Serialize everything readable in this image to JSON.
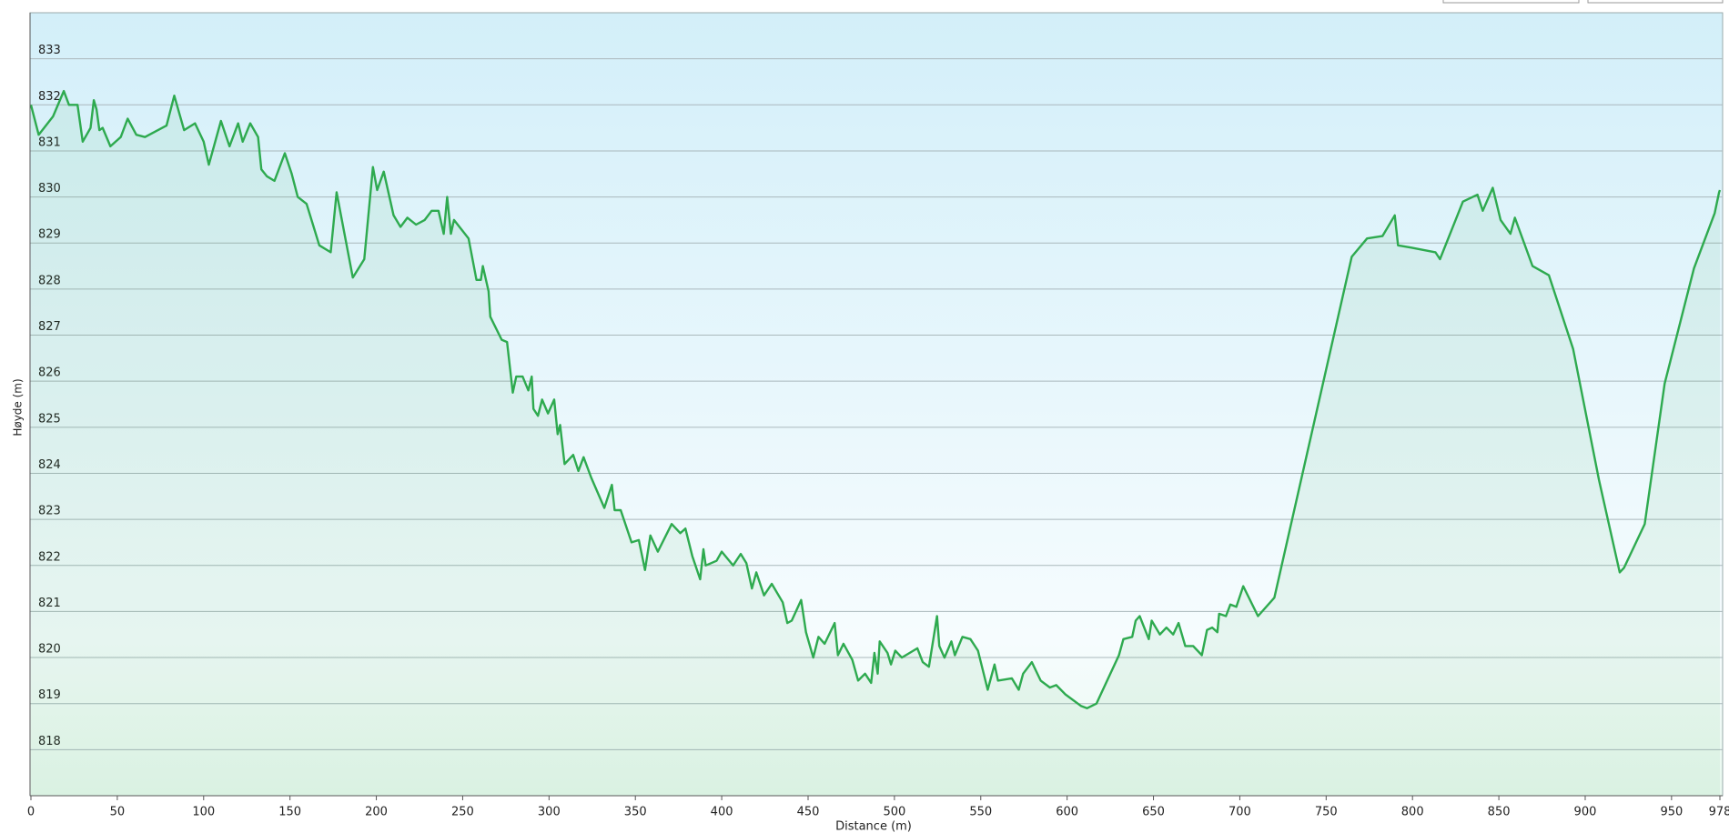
{
  "chart_data": {
    "type": "area",
    "ylabel": "Høyde (m)",
    "xlabel": "Distance (m)",
    "color": "#2eaa4f",
    "grid": true,
    "xlim": [
      0,
      978
    ],
    "ylim": [
      817,
      834
    ],
    "xticks": [
      0,
      50,
      100,
      150,
      200,
      250,
      300,
      350,
      400,
      450,
      500,
      550,
      600,
      650,
      700,
      750,
      800,
      850,
      900,
      950,
      978
    ],
    "yticks": [
      818,
      819,
      820,
      821,
      822,
      823,
      824,
      825,
      826,
      827,
      828,
      829,
      830,
      831,
      832,
      833
    ],
    "x": [
      0,
      4.5,
      12.8,
      19,
      22,
      27,
      30,
      34.5,
      36.4,
      38,
      39.6,
      41.5,
      46,
      52,
      56,
      61,
      66,
      78.5,
      83,
      88.7,
      95,
      100,
      103,
      110,
      115,
      120,
      122.6,
      127,
      131.5,
      133.4,
      136.6,
      141,
      147,
      151,
      154.5,
      159.6,
      167,
      173.6,
      177,
      186.4,
      193,
      198,
      200.5,
      204.3,
      210,
      214,
      218,
      223,
      228,
      232,
      236,
      239,
      241,
      243.2,
      245,
      253.4,
      258,
      260.5,
      261.7,
      265,
      266,
      272.6,
      275.7,
      279,
      281,
      284.7,
      288,
      290,
      291,
      293.6,
      296,
      299.4,
      303,
      305,
      306.4,
      309,
      314,
      317,
      320,
      324.5,
      332,
      336.4,
      338,
      341.5,
      347.8,
      352,
      355.6,
      358.7,
      363,
      371,
      376,
      379,
      383,
      387.5,
      389.4,
      390.7,
      397,
      400,
      406.6,
      411,
      414.3,
      417.5,
      420,
      424.5,
      429,
      435.3,
      438,
      440.5,
      446,
      448.8,
      453,
      456,
      459.6,
      465.4,
      467.3,
      470.5,
      475.6,
      479,
      483,
      486.5,
      488.4,
      490.3,
      491.5,
      496,
      498,
      500.5,
      504.3,
      513.3,
      516.4,
      520,
      524.7,
      526,
      529,
      533,
      535,
      539.4,
      544,
      548.4,
      554,
      558,
      560,
      568,
      572,
      574.5,
      579.6,
      584.7,
      590,
      593.7,
      599,
      608,
      611.5,
      617,
      630,
      632.6,
      637.7,
      639.7,
      642,
      647.3,
      649,
      653.7,
      657.5,
      661.4,
      664.5,
      668.4,
      673,
      678,
      681,
      684,
      687,
      688,
      692,
      694.5,
      698,
      702,
      710.5,
      720,
      764.8,
      773.7,
      782.6,
      789.7,
      791.6,
      799.3,
      813.3,
      815.9,
      829.2,
      837.6,
      840.7,
      846.5,
      851,
      856.7,
      859.3,
      869.5,
      879,
      893,
      908,
      920,
      922.5,
      934.5,
      946,
      963,
      975,
      977.5,
      978
    ],
    "values": [
      832.0,
      831.35,
      831.75,
      832.3,
      832.0,
      832.0,
      831.2,
      831.5,
      832.1,
      831.9,
      831.45,
      831.5,
      831.1,
      831.3,
      831.7,
      831.35,
      831.3,
      831.55,
      832.2,
      831.45,
      831.6,
      831.2,
      830.7,
      831.65,
      831.1,
      831.6,
      831.2,
      831.6,
      831.3,
      830.6,
      830.45,
      830.35,
      830.95,
      830.5,
      830.0,
      829.85,
      828.95,
      828.8,
      830.1,
      828.25,
      828.65,
      830.65,
      830.15,
      830.55,
      829.6,
      829.35,
      829.55,
      829.4,
      829.5,
      829.7,
      829.7,
      829.2,
      830.0,
      829.2,
      829.5,
      829.1,
      828.2,
      828.2,
      828.5,
      827.95,
      827.4,
      826.9,
      826.85,
      825.75,
      826.1,
      826.1,
      825.8,
      826.1,
      825.4,
      825.25,
      825.6,
      825.3,
      825.6,
      824.85,
      825.05,
      824.2,
      824.4,
      824.05,
      824.35,
      823.9,
      823.25,
      823.75,
      823.2,
      823.2,
      822.5,
      822.55,
      821.9,
      822.65,
      822.3,
      822.9,
      822.7,
      822.8,
      822.2,
      821.7,
      822.35,
      822.0,
      822.1,
      822.3,
      822.0,
      822.25,
      822.05,
      821.5,
      821.85,
      821.35,
      821.6,
      821.2,
      820.75,
      820.8,
      821.25,
      820.55,
      820.0,
      820.45,
      820.3,
      820.75,
      820.05,
      820.3,
      819.95,
      819.5,
      819.65,
      819.45,
      820.1,
      819.65,
      820.35,
      820.1,
      819.85,
      820.15,
      820.0,
      820.2,
      819.9,
      819.8,
      820.9,
      820.25,
      820.0,
      820.35,
      820.05,
      820.45,
      820.4,
      820.15,
      819.3,
      819.85,
      819.5,
      819.55,
      819.3,
      819.65,
      819.9,
      819.5,
      819.35,
      819.4,
      819.2,
      818.95,
      818.9,
      819.0,
      820.05,
      820.4,
      820.45,
      820.8,
      820.9,
      820.4,
      820.8,
      820.5,
      820.65,
      820.5,
      820.75,
      820.25,
      820.25,
      820.05,
      820.6,
      820.65,
      820.55,
      820.95,
      820.9,
      821.15,
      821.1,
      821.55,
      820.9,
      821.3,
      828.7,
      829.1,
      829.15,
      829.6,
      828.95,
      828.9,
      828.8,
      828.65,
      829.9,
      830.05,
      829.7,
      830.2,
      829.5,
      829.2,
      829.55,
      828.5,
      828.3,
      826.7,
      823.85,
      821.85,
      821.95,
      822.9,
      825.95,
      828.45,
      829.65,
      830.1,
      830.15
    ]
  }
}
